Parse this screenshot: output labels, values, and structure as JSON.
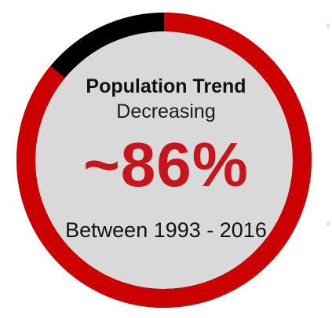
{
  "infographic": {
    "title": "Population Trend",
    "subtitle": "Decreasing",
    "value_text": "~86%",
    "period": "Between 1993 - 2016"
  },
  "gauge": {
    "fraction": 0.86,
    "ring_color": "#cc0000",
    "remainder_color": "#000000",
    "disc_color": "#d9d9d9",
    "value_color": "#c8141b"
  }
}
